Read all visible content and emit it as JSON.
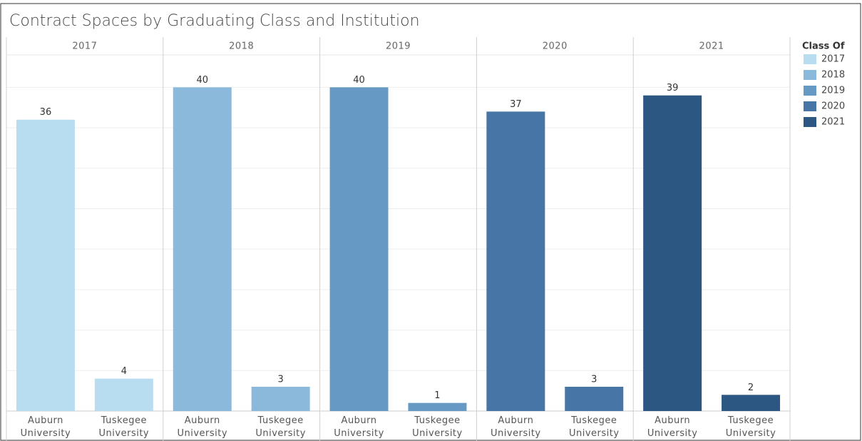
{
  "chart_data": {
    "type": "bar",
    "title": "Contract Spaces by Graduating Class and Institution",
    "categories": [
      "Auburn University",
      "Tuskegee University"
    ],
    "legend_title": "Class Of",
    "series": [
      {
        "name": "2017",
        "color": "#b9ddf0",
        "values": [
          36,
          4
        ]
      },
      {
        "name": "2018",
        "color": "#8bb9dc",
        "values": [
          40,
          3
        ]
      },
      {
        "name": "2019",
        "color": "#6699c3",
        "values": [
          40,
          1
        ]
      },
      {
        "name": "2020",
        "color": "#4775a5",
        "values": [
          37,
          3
        ]
      },
      {
        "name": "2021",
        "color": "#2c5782",
        "values": [
          39,
          2
        ]
      }
    ],
    "ylim": [
      0,
      44
    ],
    "yticks": [
      0,
      5,
      10,
      15,
      20,
      25,
      30,
      35,
      40
    ],
    "grid": true
  }
}
